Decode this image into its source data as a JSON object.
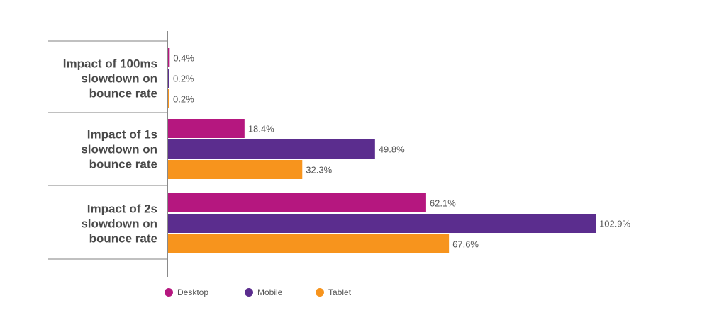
{
  "chart_data": {
    "type": "bar",
    "orientation": "horizontal",
    "categories": [
      [
        "Impact of 100ms",
        "slowdown on",
        "bounce rate"
      ],
      [
        "Impact of 1s",
        "slowdown on",
        "bounce rate"
      ],
      [
        "Impact of 2s",
        "slowdown on",
        "bounce rate"
      ]
    ],
    "series": [
      {
        "name": "Desktop",
        "color": "#b5177f",
        "values": [
          0.4,
          18.4,
          62.1
        ],
        "labels": [
          "0.4%",
          "18.4%",
          "62.1%"
        ]
      },
      {
        "name": "Mobile",
        "color": "#5b2d8e",
        "values": [
          0.2,
          49.8,
          102.9
        ],
        "labels": [
          "0.2%",
          "49.8%",
          "102.9%"
        ]
      },
      {
        "name": "Tablet",
        "color": "#f7941d",
        "values": [
          0.2,
          32.3,
          67.6
        ],
        "labels": [
          "0.2%",
          "32.3%",
          "67.6%"
        ]
      }
    ],
    "title": "",
    "xlabel": "",
    "ylabel": "",
    "xlim": [
      0,
      102.9
    ],
    "grid": false,
    "legend_position": "bottom-left"
  }
}
